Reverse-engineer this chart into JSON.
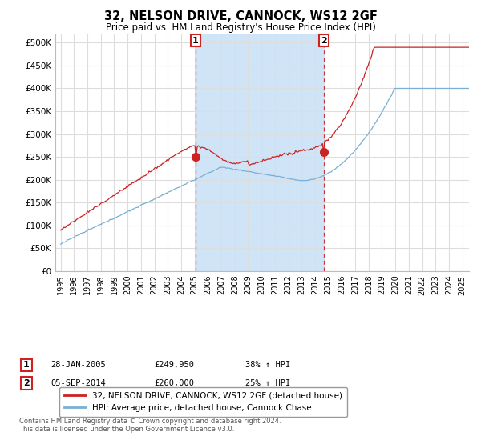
{
  "title": "32, NELSON DRIVE, CANNOCK, WS12 2GF",
  "subtitle": "Price paid vs. HM Land Registry's House Price Index (HPI)",
  "yticks": [
    0,
    50000,
    100000,
    150000,
    200000,
    250000,
    300000,
    350000,
    400000,
    450000,
    500000
  ],
  "ytick_labels": [
    "£0",
    "£50K",
    "£100K",
    "£150K",
    "£200K",
    "£250K",
    "£300K",
    "£350K",
    "£400K",
    "£450K",
    "£500K"
  ],
  "ylim": [
    0,
    520000
  ],
  "xlim_start": 1994.6,
  "xlim_end": 2025.5,
  "bg_color": "#ffffff",
  "plot_bg_color": "#ffffff",
  "grid_color": "#dddddd",
  "shade_color": "#d0e4f7",
  "hpi_color": "#7ab0d4",
  "price_color": "#cc2222",
  "vline_color": "#cc2222",
  "marker1_x": 2005.08,
  "marker1_y": 249950,
  "marker2_x": 2014.67,
  "marker2_y": 260000,
  "marker1_date": "28-JAN-2005",
  "marker1_price": "£249,950",
  "marker1_hpi": "38% ↑ HPI",
  "marker2_date": "05-SEP-2014",
  "marker2_price": "£260,000",
  "marker2_hpi": "25% ↑ HPI",
  "legend_line1": "32, NELSON DRIVE, CANNOCK, WS12 2GF (detached house)",
  "legend_line2": "HPI: Average price, detached house, Cannock Chase",
  "footer": "Contains HM Land Registry data © Crown copyright and database right 2024.\nThis data is licensed under the Open Government Licence v3.0.",
  "xtick_years": [
    1995,
    1996,
    1997,
    1998,
    1999,
    2000,
    2001,
    2002,
    2003,
    2004,
    2005,
    2006,
    2007,
    2008,
    2009,
    2010,
    2011,
    2012,
    2013,
    2014,
    2015,
    2016,
    2017,
    2018,
    2019,
    2020,
    2021,
    2022,
    2023,
    2024,
    2025
  ]
}
